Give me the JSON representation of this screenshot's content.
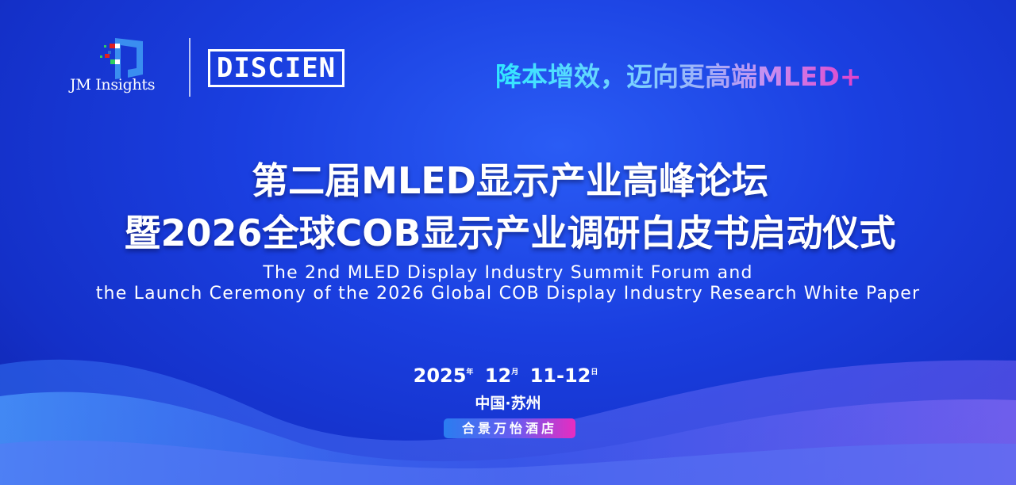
{
  "logos": {
    "jm_insights": "JM Insights",
    "discien": "DISCIEN"
  },
  "slogan": "降本增效，迈向更高端MLED+",
  "title": {
    "line1": "第二届MLED显示产业高峰论坛",
    "line2": "暨2026全球COB显示产业调研白皮书启动仪式"
  },
  "subtitle_en": {
    "line1": "The 2nd MLED Display Industry Summit Forum and",
    "line2": "the Launch Ceremony of the 2026 Global COB Display Industry Research White Paper"
  },
  "date": {
    "year": "2025",
    "year_unit": "年",
    "month": "12",
    "month_unit": "月",
    "days": "11-12",
    "day_unit": "日"
  },
  "location": "中国·苏州",
  "venue": "合景万怡酒店",
  "colors": {
    "background": "#1a3fe0",
    "slogan_start": "#2fe6ff",
    "slogan_end": "#e23fc8",
    "venue_start": "#2a7df0",
    "venue_end": "#e82cc0"
  }
}
